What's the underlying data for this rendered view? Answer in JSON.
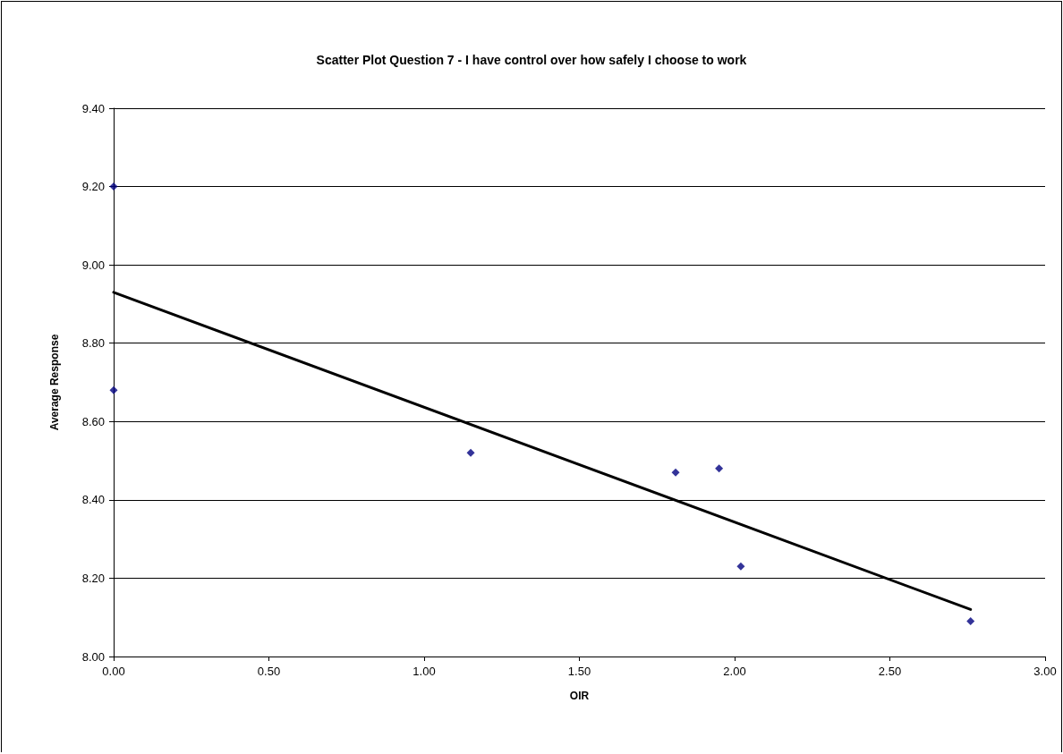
{
  "chart_data": {
    "type": "scatter",
    "title": "Scatter Plot Question 7 - I have control over how safely I choose to work",
    "xlabel": "OIR",
    "ylabel": "Average Response",
    "marker": "diamond",
    "grid": "y",
    "xlim": [
      0,
      3
    ],
    "xticks": [
      {
        "value": 0,
        "label": "0.00"
      },
      {
        "value": 0.5,
        "label": "0.50"
      },
      {
        "value": 1,
        "label": "1.00"
      },
      {
        "value": 1.5,
        "label": "1.50"
      },
      {
        "value": 2,
        "label": "2.00"
      },
      {
        "value": 2.5,
        "label": "2.50"
      },
      {
        "value": 3,
        "label": "3.00"
      }
    ],
    "ylim": [
      8,
      9.4
    ],
    "yticks": [
      {
        "value": 8,
        "label": "8.00"
      },
      {
        "value": 8.2,
        "label": "8.20"
      },
      {
        "value": 8.4,
        "label": "8.40"
      },
      {
        "value": 8.6,
        "label": "8.60"
      },
      {
        "value": 8.8,
        "label": "8.80"
      },
      {
        "value": 9,
        "label": "9.00"
      },
      {
        "value": 9.2,
        "label": "9.20"
      },
      {
        "value": 9.4,
        "label": "9.40"
      }
    ],
    "series": [
      {
        "color": "#000080",
        "x": [
          0,
          0,
          1.15,
          1.81,
          1.95,
          2.02,
          2.76
        ],
        "values": [
          9.2,
          8.68,
          8.52,
          8.47,
          8.48,
          8.23,
          8.09
        ]
      },
      {
        "type": "line",
        "color": "#000000",
        "marker": "none",
        "x": [
          0,
          2.76
        ],
        "values": [
          8.93,
          8.12
        ]
      }
    ]
  }
}
